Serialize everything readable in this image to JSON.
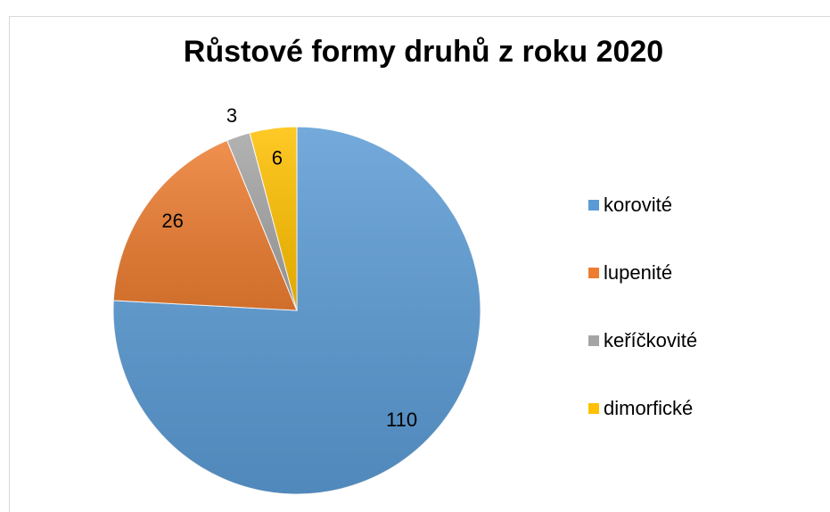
{
  "chart_data": {
    "type": "pie",
    "title": "Růstové formy druhů z roku 2020",
    "categories": [
      "korovité",
      "lupenité",
      "keříčkovité",
      "dimorfické"
    ],
    "values": [
      110,
      26,
      3,
      6
    ],
    "colors": [
      "#5b9bd5",
      "#ed7d31",
      "#a5a5a5",
      "#ffc000"
    ],
    "legend": "right"
  }
}
